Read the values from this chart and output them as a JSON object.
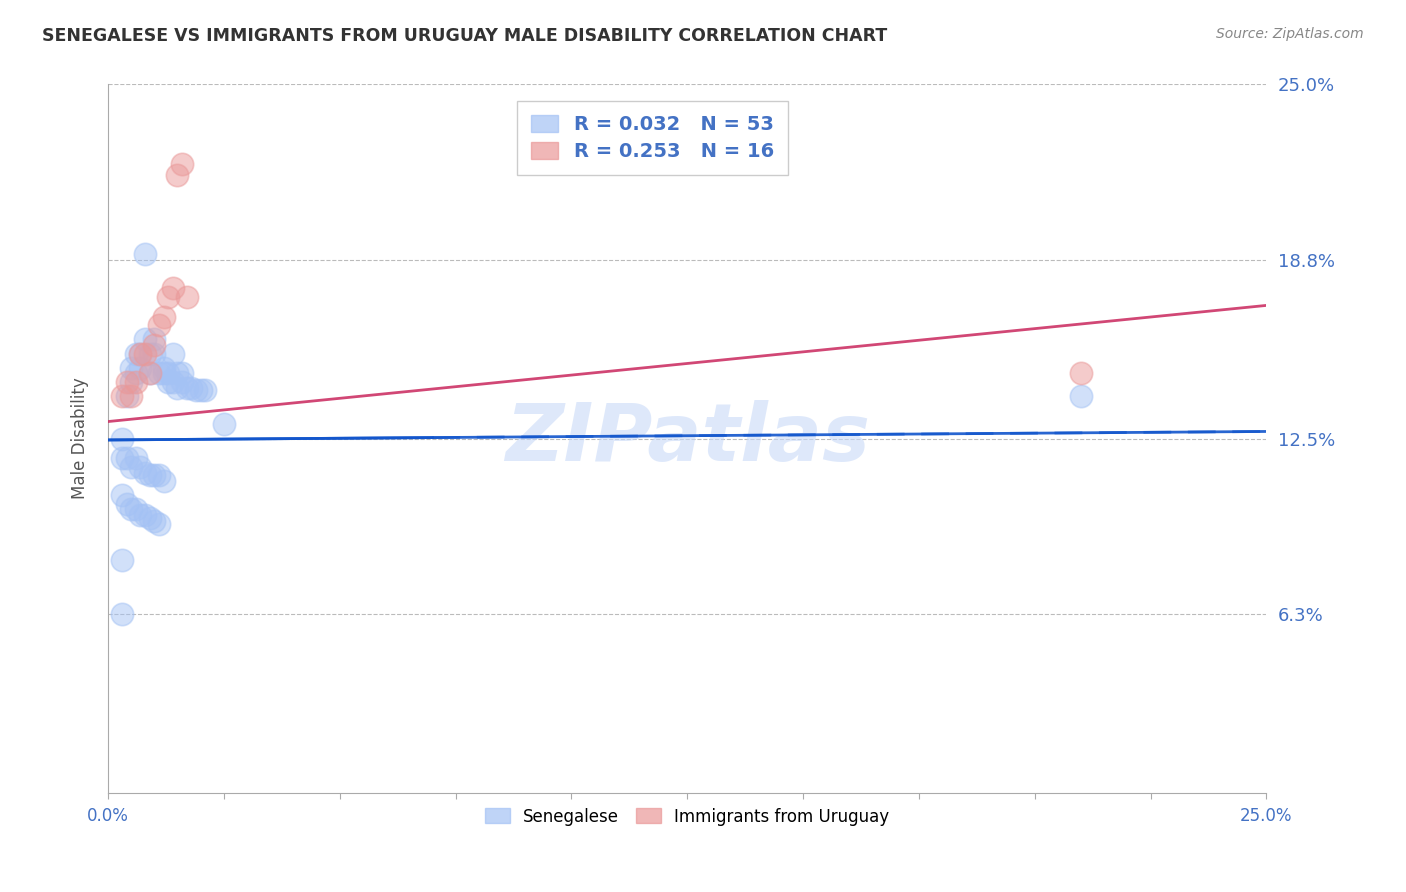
{
  "title": "SENEGALESE VS IMMIGRANTS FROM URUGUAY MALE DISABILITY CORRELATION CHART",
  "source": "Source: ZipAtlas.com",
  "ylabel": "Male Disability",
  "xlim": [
    0.0,
    0.25
  ],
  "ylim": [
    0.0,
    0.25
  ],
  "ytick_vals": [
    0.063,
    0.125,
    0.188,
    0.25
  ],
  "ytick_labels": [
    "6.3%",
    "12.5%",
    "18.8%",
    "25.0%"
  ],
  "legend1_R": "0.032",
  "legend1_N": "53",
  "legend2_R": "0.253",
  "legend2_N": "16",
  "blue_scatter_color": "#a4c2f4",
  "pink_scatter_color": "#ea9999",
  "blue_line_color": "#1155cc",
  "pink_line_color": "#cc3366",
  "right_axis_color": "#4472c4",
  "watermark_color": "#c9daf8",
  "senegalese_x": [
    0.003,
    0.004,
    0.005,
    0.005,
    0.006,
    0.006,
    0.007,
    0.007,
    0.008,
    0.008,
    0.009,
    0.009,
    0.01,
    0.01,
    0.011,
    0.012,
    0.012,
    0.013,
    0.013,
    0.014,
    0.014,
    0.015,
    0.015,
    0.016,
    0.016,
    0.017,
    0.018,
    0.019,
    0.02,
    0.021,
    0.003,
    0.004,
    0.005,
    0.006,
    0.007,
    0.008,
    0.009,
    0.01,
    0.011,
    0.012,
    0.003,
    0.004,
    0.005,
    0.006,
    0.007,
    0.008,
    0.009,
    0.01,
    0.011,
    0.025,
    0.003,
    0.21,
    0.003
  ],
  "senegalese_y": [
    0.125,
    0.14,
    0.145,
    0.15,
    0.148,
    0.155,
    0.15,
    0.155,
    0.16,
    0.19,
    0.148,
    0.155,
    0.155,
    0.16,
    0.148,
    0.148,
    0.15,
    0.148,
    0.145,
    0.145,
    0.155,
    0.143,
    0.148,
    0.145,
    0.148,
    0.143,
    0.143,
    0.142,
    0.142,
    0.142,
    0.118,
    0.118,
    0.115,
    0.118,
    0.115,
    0.113,
    0.112,
    0.112,
    0.112,
    0.11,
    0.105,
    0.102,
    0.1,
    0.1,
    0.098,
    0.098,
    0.097,
    0.096,
    0.095,
    0.13,
    0.063,
    0.14,
    0.082
  ],
  "uruguay_x": [
    0.003,
    0.004,
    0.005,
    0.006,
    0.007,
    0.008,
    0.009,
    0.01,
    0.011,
    0.012,
    0.013,
    0.014,
    0.015,
    0.016,
    0.017,
    0.21
  ],
  "uruguay_y": [
    0.14,
    0.145,
    0.14,
    0.145,
    0.155,
    0.155,
    0.148,
    0.158,
    0.165,
    0.168,
    0.175,
    0.178,
    0.218,
    0.222,
    0.175,
    0.148
  ],
  "blue_line_x0": 0.0,
  "blue_line_x1": 0.25,
  "blue_line_y0": 0.1245,
  "blue_line_y1": 0.1275,
  "pink_line_x0": 0.0,
  "pink_line_x1": 0.25,
  "pink_line_y0": 0.131,
  "pink_line_y1": 0.172
}
